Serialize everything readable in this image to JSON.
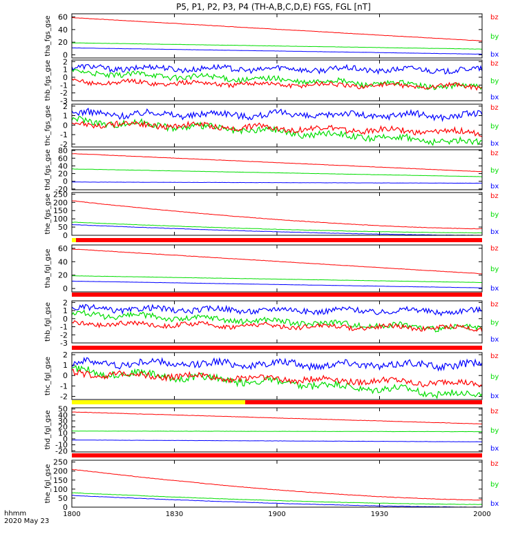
{
  "title": "P5, P1, P2, P3, P4 (TH-A,B,C,D,E) FGS, FGL [nT]",
  "time_axis": {
    "ticks": [
      "1800",
      "1830",
      "1900",
      "1930",
      "2000"
    ],
    "label_line1": "hhmm",
    "label_line2": "2020 May 23"
  },
  "colors": {
    "bx": "#0000ff",
    "by": "#00dd00",
    "bz": "#ff0000",
    "flag_red": "#ff0000",
    "flag_yellow": "#ffff00"
  },
  "chart_data": [
    {
      "type": "line",
      "panel": "tha",
      "ylabel": "tha_fgs_gse",
      "ylim": [
        -5,
        65
      ],
      "yticks": [
        "60",
        "40",
        "20",
        "0"
      ],
      "series": [
        {
          "name": "bz",
          "start": 59,
          "end": 22,
          "shape": "linear",
          "wiggle": 0.8
        },
        {
          "name": "by",
          "start": 19,
          "end": 9,
          "shape": "linear",
          "wiggle": 0.5
        },
        {
          "name": "bx",
          "start": 11,
          "end": 1,
          "shape": "linear",
          "wiggle": 0.4
        }
      ]
    },
    {
      "type": "line",
      "panel": "thb",
      "ylabel": "thb_fgs_gse",
      "ylim": [
        -3,
        2.2
      ],
      "yticks": [
        "2",
        "1",
        "0",
        "-1",
        "-2",
        "-3"
      ],
      "series": [
        {
          "name": "bx",
          "start": 1.2,
          "end": 0.9,
          "shape": "noisy",
          "wiggle": 0.35
        },
        {
          "name": "by",
          "start": 0.6,
          "end": -1.3,
          "shape": "noisy",
          "wiggle": 0.35
        },
        {
          "name": "bz",
          "start": -0.6,
          "end": -1.2,
          "shape": "noisy",
          "wiggle": 0.3
        }
      ]
    },
    {
      "type": "line",
      "panel": "thc",
      "ylabel": "thc_fgs_gse",
      "ylim": [
        -2.3,
        2.2
      ],
      "yticks": [
        "2",
        "1",
        "0",
        "-1",
        "-2"
      ],
      "series": [
        {
          "name": "bx",
          "start": 1.2,
          "end": 1.0,
          "shape": "noisy",
          "wiggle": 0.35
        },
        {
          "name": "by",
          "start": 0.5,
          "end": -1.9,
          "shape": "noisy",
          "wiggle": 0.35
        },
        {
          "name": "bz",
          "start": 0.2,
          "end": -0.8,
          "shape": "noisy",
          "wiggle": 0.3
        }
      ]
    },
    {
      "type": "line",
      "panel": "thd",
      "ylabel": "thd_fgs_gse",
      "ylim": [
        -22,
        82
      ],
      "yticks": [
        "80",
        "60",
        "40",
        "20",
        "0",
        "-20"
      ],
      "series": [
        {
          "name": "bz",
          "start": 72,
          "end": 25,
          "shape": "linear",
          "wiggle": 0.8
        },
        {
          "name": "by",
          "start": 32,
          "end": 12,
          "shape": "linear",
          "wiggle": 0.5
        },
        {
          "name": "bx",
          "start": -2,
          "end": -5,
          "shape": "linear",
          "wiggle": 0.5
        }
      ]
    },
    {
      "type": "line",
      "panel": "the",
      "ylabel": "the_fgs_gse",
      "ylim": [
        0,
        260
      ],
      "yticks": [
        "250",
        "200",
        "150",
        "100",
        "50",
        "0"
      ],
      "series": [
        {
          "name": "bz",
          "start": 210,
          "end": 40,
          "shape": "decay",
          "wiggle": 1.0
        },
        {
          "name": "by",
          "start": 80,
          "end": 15,
          "shape": "decay",
          "wiggle": 0.8
        },
        {
          "name": "bx",
          "start": 65,
          "end": 0,
          "shape": "decay",
          "wiggle": 0.8
        }
      ]
    },
    {
      "type": "line",
      "panel": "tha",
      "ylabel": "tha_fgl_gse",
      "ylim": [
        -5,
        65
      ],
      "yticks": [
        "60",
        "40",
        "20",
        "0"
      ],
      "series": [
        {
          "name": "bz",
          "start": 59,
          "end": 22,
          "shape": "linear",
          "wiggle": 0.8
        },
        {
          "name": "by",
          "start": 19,
          "end": 9,
          "shape": "linear",
          "wiggle": 0.5
        },
        {
          "name": "bx",
          "start": 11,
          "end": 1,
          "shape": "linear",
          "wiggle": 0.4
        }
      ]
    },
    {
      "type": "line",
      "panel": "thb",
      "ylabel": "thb_fgl_gse",
      "ylim": [
        -3,
        2.2
      ],
      "yticks": [
        "2",
        "1",
        "0",
        "-1",
        "-2",
        "-3"
      ],
      "series": [
        {
          "name": "bx",
          "start": 1.2,
          "end": 0.9,
          "shape": "noisy",
          "wiggle": 0.35
        },
        {
          "name": "by",
          "start": 0.6,
          "end": -1.3,
          "shape": "noisy",
          "wiggle": 0.35
        },
        {
          "name": "bz",
          "start": -0.6,
          "end": -1.2,
          "shape": "noisy",
          "wiggle": 0.3
        }
      ]
    },
    {
      "type": "line",
      "panel": "thc",
      "ylabel": "thc_fgl_gse",
      "ylim": [
        -2.3,
        2.2
      ],
      "yticks": [
        "2",
        "1",
        "0",
        "-1",
        "-2"
      ],
      "series": [
        {
          "name": "bx",
          "start": 1.2,
          "end": 1.0,
          "shape": "noisy",
          "wiggle": 0.35
        },
        {
          "name": "by",
          "start": 0.5,
          "end": -1.9,
          "shape": "noisy",
          "wiggle": 0.35
        },
        {
          "name": "bz",
          "start": 0.2,
          "end": -0.8,
          "shape": "noisy",
          "wiggle": 0.3
        }
      ]
    },
    {
      "type": "line",
      "panel": "thd",
      "ylabel": "thd_fgl_gse",
      "ylim": [
        -22,
        52
      ],
      "yticks": [
        "50",
        "40",
        "30",
        "20",
        "10",
        "0",
        "-10",
        "-20"
      ],
      "series": [
        {
          "name": "bz",
          "start": 45,
          "end": 25,
          "shape": "linear",
          "wiggle": 0.8
        },
        {
          "name": "by",
          "start": 13,
          "end": 12,
          "shape": "linear",
          "wiggle": 0.5
        },
        {
          "name": "bx",
          "start": -2,
          "end": -5,
          "shape": "linear",
          "wiggle": 0.5
        }
      ]
    },
    {
      "type": "line",
      "panel": "the",
      "ylabel": "the_fgl_gse",
      "ylim": [
        0,
        260
      ],
      "yticks": [
        "250",
        "200",
        "150",
        "100",
        "50",
        "0"
      ],
      "series": [
        {
          "name": "bz",
          "start": 210,
          "end": 40,
          "shape": "decay",
          "wiggle": 1.0
        },
        {
          "name": "by",
          "start": 80,
          "end": 15,
          "shape": "decay",
          "wiggle": 0.8
        },
        {
          "name": "bx",
          "start": 65,
          "end": 0,
          "shape": "decay",
          "wiggle": 0.8
        }
      ]
    }
  ],
  "legend": [
    "bz",
    "by",
    "bx"
  ]
}
